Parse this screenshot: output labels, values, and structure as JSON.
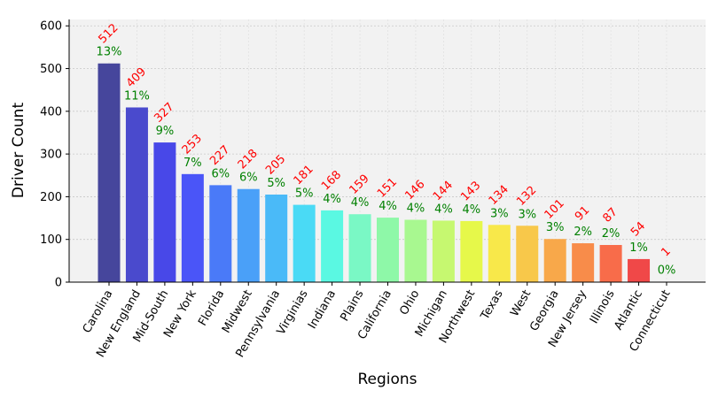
{
  "chart_data": {
    "type": "bar",
    "title": "",
    "xlabel": "Regions",
    "ylabel": "Driver Count",
    "ylim": [
      0,
      615
    ],
    "yticks": [
      0,
      100,
      200,
      300,
      400,
      500,
      600
    ],
    "grid": true,
    "categories": [
      "Carolina",
      "New England",
      "Mid-South",
      "New York",
      "Florida",
      "Midwest",
      "Pennsylvania",
      "Virginias",
      "Indiana",
      "Plains",
      "California",
      "Ohio",
      "Michigan",
      "Northwest",
      "Texas",
      "West",
      "Georgia",
      "New Jersey",
      "Illinois",
      "Atlantic",
      "Connecticut"
    ],
    "values": [
      512,
      409,
      327,
      253,
      227,
      218,
      205,
      181,
      168,
      159,
      151,
      146,
      144,
      143,
      134,
      132,
      101,
      91,
      87,
      54,
      1
    ],
    "value_labels": [
      "512",
      "409",
      "327",
      "253",
      "227",
      "218",
      "205",
      "181",
      "168",
      "159",
      "151",
      "146",
      "144",
      "143",
      "134",
      "132",
      "101",
      "91",
      "87",
      "54",
      "1"
    ],
    "percent_labels": [
      "13%",
      "11%",
      "9%",
      "7%",
      "6%",
      "6%",
      "5%",
      "5%",
      "4%",
      "4%",
      "4%",
      "4%",
      "4%",
      "4%",
      "3%",
      "3%",
      "3%",
      "2%",
      "2%",
      "1%",
      "0%"
    ],
    "colors": [
      "#46469c",
      "#4a4acd",
      "#4848e8",
      "#4a55f8",
      "#4a7af8",
      "#4aa0f8",
      "#4abaf8",
      "#4adaf5",
      "#5af8e2",
      "#7af8c5",
      "#8ef8a8",
      "#a8f890",
      "#c6f870",
      "#e6f84a",
      "#f8e84a",
      "#f8c84a",
      "#f8a84a",
      "#f88c4a",
      "#f86c4a",
      "#f04848",
      "#e03030"
    ],
    "value_label_color": "#ff0000",
    "percent_label_color": "#008000",
    "background": "#f2f2f2"
  }
}
